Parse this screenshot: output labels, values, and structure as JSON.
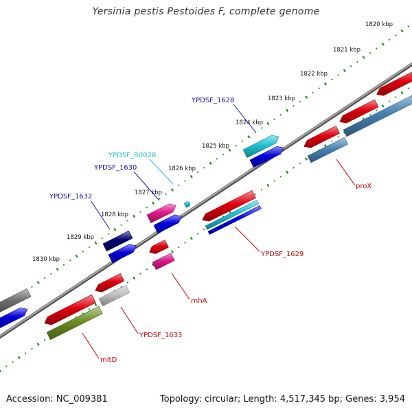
{
  "title": "Yersinia pestis Pestoides F, complete genome",
  "footer": {
    "accession": "Accession: NC_009381",
    "topology": "Topology: circular; Length: 4,517,345 bp; Genes: 3,954"
  },
  "ruler": {
    "labels": [
      "1820 kbp",
      "1821 kbp",
      "1822 kbp",
      "1823 kbp",
      "1824 kbp",
      "1825 kbp",
      "1826 kbp",
      "1827 kbp",
      "1828 kbp",
      "1829 kbp",
      "1830 kbp"
    ]
  },
  "colors": {
    "red": "#e0000d",
    "blue": "#0000e0",
    "navy": "#000070",
    "cyan": "#20c0d0",
    "pink": "#e0178b",
    "gray": "#707070",
    "lightgray": "#c0c0c0",
    "steel": "#4682b4",
    "olive": "#6b8e23",
    "backbone": "#888888",
    "tick": "#1a8a1a",
    "label_blue": "#1010a0",
    "label_cyan": "#20b8e0",
    "label_red": "#c00000"
  },
  "genes": [
    {
      "id": "YPDSF_1628",
      "label": "YPDSF_1628",
      "color": "label_blue"
    },
    {
      "id": "YPDSF_R0028",
      "label": "YPDSF_R0028",
      "color": "label_cyan"
    },
    {
      "id": "YPDSF_1630",
      "label": "YPDSF_1630",
      "color": "label_blue"
    },
    {
      "id": "YPDSF_1632",
      "label": "YPDSF_1632",
      "color": "label_blue"
    },
    {
      "id": "proX",
      "label": "proX",
      "color": "label_red"
    },
    {
      "id": "YPDSF_1629",
      "label": "YPDSF_1629",
      "color": "label_red"
    },
    {
      "id": "rnhA",
      "label": "rnhA",
      "color": "label_red"
    },
    {
      "id": "YPDSF_1633",
      "label": "YPDSF_1633",
      "color": "label_red"
    },
    {
      "id": "mltD",
      "label": "mltD",
      "color": "label_red"
    }
  ]
}
